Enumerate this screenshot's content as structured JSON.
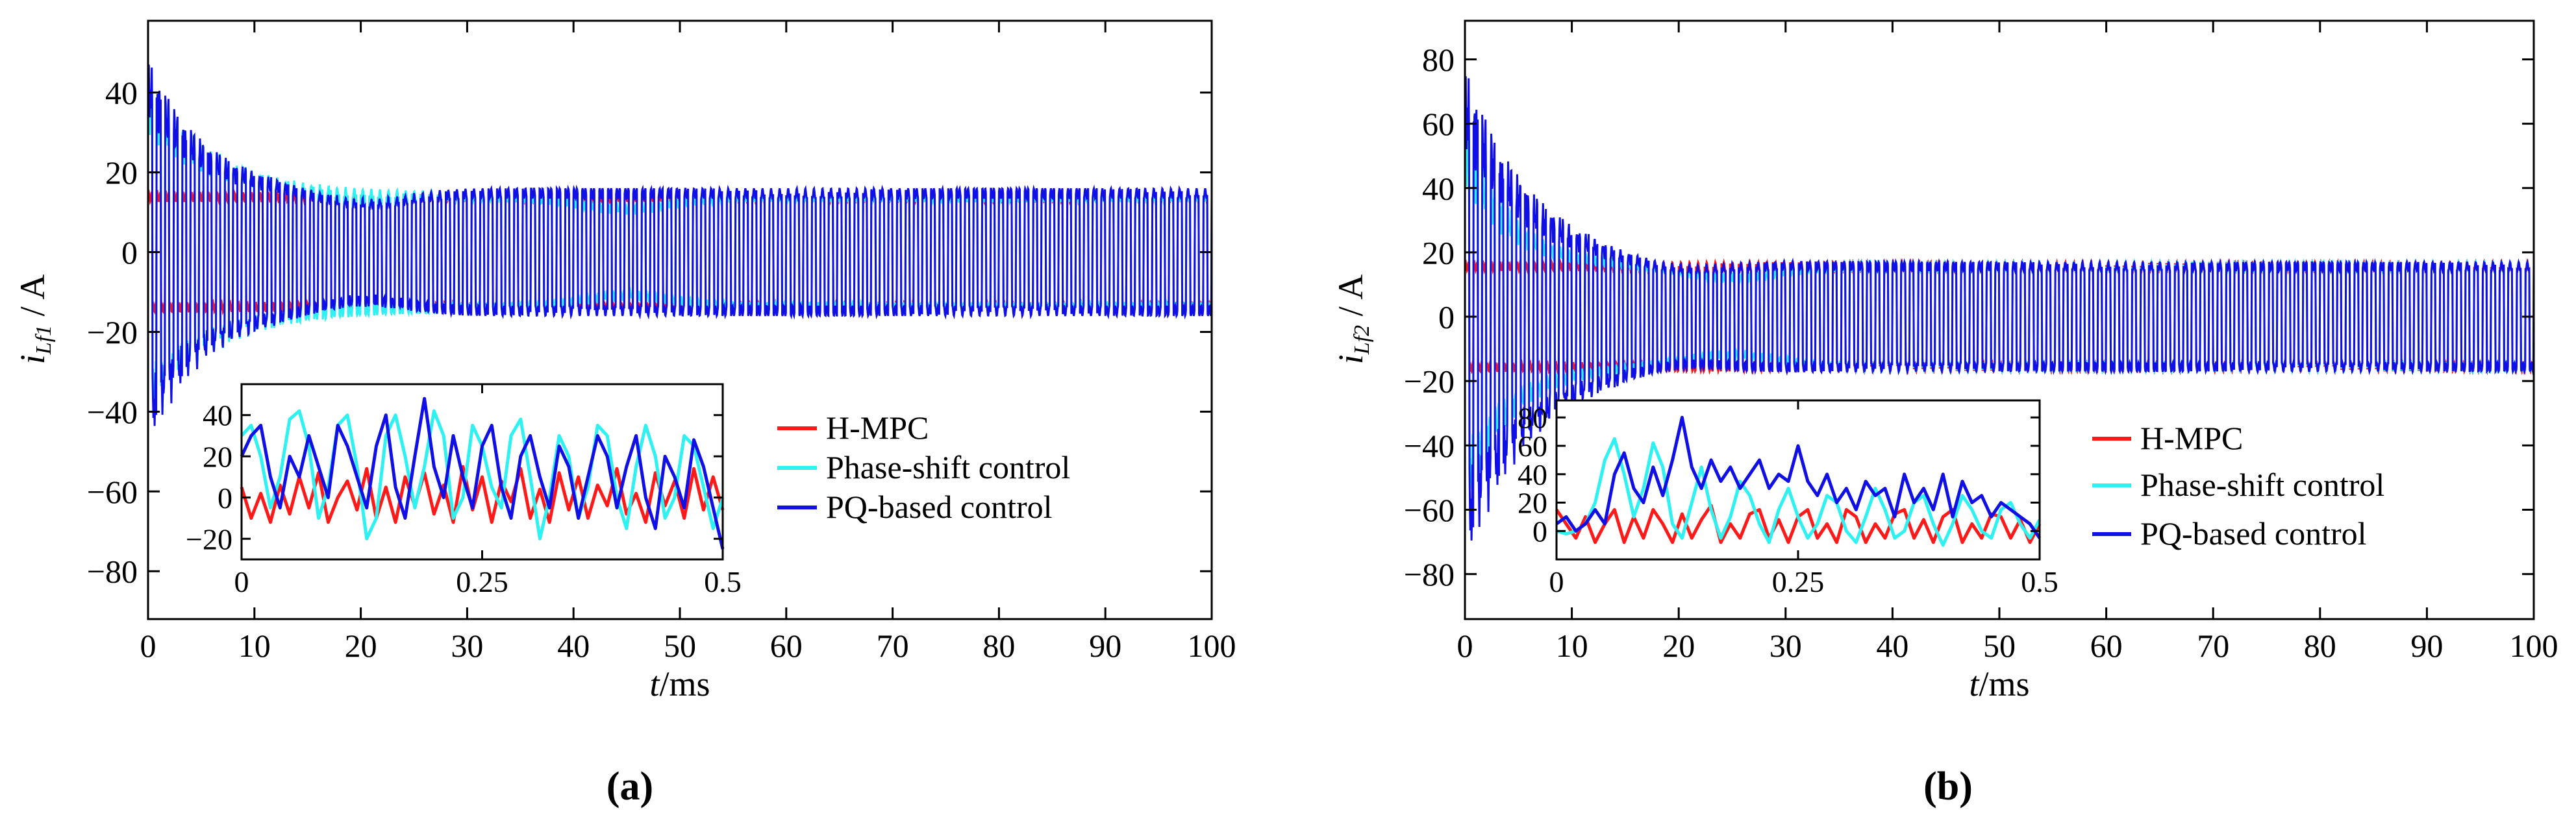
{
  "figure": {
    "panel_labels": [
      "(a)",
      "(b)"
    ]
  },
  "colors": {
    "hmpc": "#ff1a1a",
    "phase_shift": "#2ef2f2",
    "pq": "#1010e6",
    "axis": "#000000"
  },
  "chart_data": [
    {
      "type": "line",
      "panel": "a",
      "xlabel": "t/ms",
      "ylabel": "i_Lf1 / A",
      "ylabel_main": "i",
      "ylabel_sub": "Lf1",
      "ylabel_unit": " / A",
      "xlabel_var": "t",
      "xlabel_unit": "/ms",
      "xlim": [
        0,
        100
      ],
      "ylim": [
        -92,
        58
      ],
      "xticks": [
        0,
        10,
        20,
        30,
        40,
        50,
        60,
        70,
        80,
        90,
        100
      ],
      "yticks": [
        -80,
        -60,
        -40,
        -20,
        0,
        20,
        40
      ],
      "legend": [
        "H-MPC",
        "Phase-shift control",
        "PQ-based control"
      ],
      "legend_position": "center-right",
      "series": [
        {
          "name": "H-MPC",
          "color_key": "hmpc",
          "steady_amplitude": 15,
          "transient_peak": 15,
          "decay_ms": 0,
          "dip_center_ms": 0,
          "dip_depth": 0
        },
        {
          "name": "Phase-shift control",
          "color_key": "phase_shift",
          "steady_amplitude": 15,
          "transient_peak": 45,
          "decay_ms": 6,
          "dip_center_ms": 45,
          "dip_depth": 4
        },
        {
          "name": "PQ-based control",
          "color_key": "pq",
          "steady_amplitude": 16,
          "transient_peak": 50,
          "decay_ms": 5,
          "dip_center_ms": 20,
          "dip_depth": 4
        }
      ],
      "inset": {
        "xlim": [
          0,
          0.5
        ],
        "ylim": [
          -30,
          55
        ],
        "xticks": [
          0,
          0.25,
          0.5
        ],
        "yticks": [
          -20,
          0,
          20,
          40
        ],
        "series": [
          {
            "name": "H-MPC",
            "color_key": "hmpc",
            "x": [
              0,
              0.01,
              0.02,
              0.03,
              0.04,
              0.05,
              0.06,
              0.07,
              0.08,
              0.09,
              0.1,
              0.11,
              0.12,
              0.13,
              0.14,
              0.15,
              0.16,
              0.17,
              0.18,
              0.19,
              0.2,
              0.21,
              0.22,
              0.23,
              0.24,
              0.25,
              0.26,
              0.27,
              0.28,
              0.29,
              0.3,
              0.31,
              0.32,
              0.33,
              0.34,
              0.35,
              0.36,
              0.37,
              0.38,
              0.39,
              0.4,
              0.41,
              0.42,
              0.43,
              0.44,
              0.45,
              0.46,
              0.47,
              0.48,
              0.49,
              0.5
            ],
            "y": [
              5,
              -10,
              2,
              -12,
              6,
              -8,
              10,
              -5,
              12,
              -12,
              0,
              8,
              -6,
              14,
              -10,
              5,
              -12,
              10,
              -4,
              12,
              -8,
              6,
              -12,
              15,
              -6,
              10,
              -12,
              8,
              -2,
              14,
              -10,
              4,
              -12,
              12,
              -6,
              10,
              -10,
              6,
              -4,
              14,
              -8,
              2,
              -12,
              12,
              -4,
              8,
              -10,
              14,
              -6,
              10,
              -6
            ]
          },
          {
            "name": "Phase-shift control",
            "color_key": "phase_shift",
            "x": [
              0,
              0.01,
              0.02,
              0.03,
              0.04,
              0.05,
              0.06,
              0.07,
              0.08,
              0.09,
              0.1,
              0.11,
              0.12,
              0.13,
              0.14,
              0.15,
              0.16,
              0.17,
              0.18,
              0.19,
              0.2,
              0.21,
              0.22,
              0.23,
              0.24,
              0.25,
              0.26,
              0.27,
              0.28,
              0.29,
              0.3,
              0.31,
              0.32,
              0.33,
              0.34,
              0.35,
              0.36,
              0.37,
              0.38,
              0.39,
              0.4,
              0.41,
              0.42,
              0.43,
              0.44,
              0.45,
              0.46,
              0.47,
              0.48,
              0.49,
              0.5
            ],
            "y": [
              30,
              35,
              20,
              -5,
              10,
              38,
              42,
              25,
              -10,
              5,
              35,
              40,
              15,
              -20,
              -10,
              30,
              40,
              20,
              -5,
              15,
              42,
              30,
              -10,
              0,
              35,
              25,
              5,
              -5,
              30,
              38,
              10,
              -20,
              0,
              30,
              20,
              -10,
              5,
              35,
              30,
              0,
              -15,
              15,
              35,
              20,
              -10,
              0,
              30,
              25,
              5,
              -15,
              0
            ]
          },
          {
            "name": "PQ-based control",
            "color_key": "pq",
            "x": [
              0,
              0.01,
              0.02,
              0.03,
              0.04,
              0.05,
              0.06,
              0.07,
              0.08,
              0.09,
              0.1,
              0.11,
              0.12,
              0.13,
              0.14,
              0.15,
              0.16,
              0.17,
              0.18,
              0.19,
              0.2,
              0.21,
              0.22,
              0.23,
              0.24,
              0.25,
              0.26,
              0.27,
              0.28,
              0.29,
              0.3,
              0.31,
              0.32,
              0.33,
              0.34,
              0.35,
              0.36,
              0.37,
              0.38,
              0.39,
              0.4,
              0.41,
              0.42,
              0.43,
              0.44,
              0.45,
              0.46,
              0.47,
              0.48,
              0.49,
              0.5
            ],
            "y": [
              20,
              30,
              35,
              10,
              -5,
              20,
              10,
              30,
              15,
              0,
              35,
              25,
              10,
              -5,
              25,
              40,
              5,
              -10,
              20,
              48,
              15,
              0,
              30,
              10,
              -5,
              25,
              35,
              5,
              -10,
              20,
              30,
              10,
              -5,
              25,
              15,
              -10,
              10,
              30,
              20,
              -5,
              15,
              30,
              0,
              -15,
              20,
              10,
              -5,
              28,
              15,
              -5,
              -25
            ]
          }
        ]
      }
    },
    {
      "type": "line",
      "panel": "b",
      "xlabel": "t/ms",
      "ylabel": "i_Lf2 / A",
      "ylabel_main": "i",
      "ylabel_sub": "Lf2",
      "ylabel_unit": " / A",
      "xlabel_var": "t",
      "xlabel_unit": "/ms",
      "xlim": [
        0,
        100
      ],
      "ylim": [
        -94,
        92
      ],
      "xticks": [
        0,
        10,
        20,
        30,
        40,
        50,
        60,
        70,
        80,
        90,
        100
      ],
      "yticks": [
        -80,
        -60,
        -40,
        -20,
        0,
        20,
        40,
        60,
        80
      ],
      "legend": [
        "H-MPC",
        "Phase-shift control",
        "PQ-based control"
      ],
      "legend_position": "center-right",
      "series": [
        {
          "name": "H-MPC",
          "color_key": "hmpc",
          "steady_amplitude": 17,
          "transient_peak": 17,
          "decay_ms": 0,
          "dip_center_ms": 0,
          "dip_depth": 0
        },
        {
          "name": "Phase-shift control",
          "color_key": "phase_shift",
          "steady_amplitude": 17,
          "transient_peak": 65,
          "decay_ms": 4,
          "dip_center_ms": 25,
          "dip_depth": 5
        },
        {
          "name": "PQ-based control",
          "color_key": "pq",
          "steady_amplitude": 17,
          "transient_peak": 80,
          "decay_ms": 6,
          "dip_center_ms": 20,
          "dip_depth": 3
        }
      ],
      "inset": {
        "xlim": [
          0,
          0.5
        ],
        "ylim": [
          -20,
          92
        ],
        "xticks": [
          0,
          0.25,
          0.5
        ],
        "yticks": [
          0,
          20,
          40,
          60,
          80
        ],
        "series": [
          {
            "name": "H-MPC",
            "color_key": "hmpc",
            "x": [
              0,
              0.01,
              0.02,
              0.03,
              0.04,
              0.05,
              0.06,
              0.07,
              0.08,
              0.09,
              0.1,
              0.11,
              0.12,
              0.13,
              0.14,
              0.15,
              0.16,
              0.17,
              0.18,
              0.19,
              0.2,
              0.21,
              0.22,
              0.23,
              0.24,
              0.25,
              0.26,
              0.27,
              0.28,
              0.29,
              0.3,
              0.31,
              0.32,
              0.33,
              0.34,
              0.35,
              0.36,
              0.37,
              0.38,
              0.39,
              0.4,
              0.41,
              0.42,
              0.43,
              0.44,
              0.45,
              0.46,
              0.47,
              0.48,
              0.49,
              0.5
            ],
            "y": [
              15,
              5,
              -5,
              10,
              -8,
              5,
              15,
              -8,
              10,
              -5,
              15,
              5,
              -8,
              12,
              -5,
              8,
              18,
              -8,
              5,
              -5,
              12,
              15,
              -5,
              8,
              -8,
              10,
              15,
              -5,
              5,
              -8,
              15,
              10,
              -8,
              5,
              -5,
              12,
              15,
              -5,
              8,
              -8,
              10,
              15,
              -8,
              5,
              -5,
              12,
              10,
              -5,
              8,
              -8,
              5
            ]
          },
          {
            "name": "Phase-shift control",
            "color_key": "phase_shift",
            "x": [
              0,
              0.01,
              0.02,
              0.03,
              0.04,
              0.05,
              0.06,
              0.07,
              0.08,
              0.09,
              0.1,
              0.11,
              0.12,
              0.13,
              0.14,
              0.15,
              0.16,
              0.17,
              0.18,
              0.19,
              0.2,
              0.21,
              0.22,
              0.23,
              0.24,
              0.25,
              0.26,
              0.27,
              0.28,
              0.29,
              0.3,
              0.31,
              0.32,
              0.33,
              0.34,
              0.35,
              0.36,
              0.37,
              0.38,
              0.39,
              0.4,
              0.41,
              0.42,
              0.43,
              0.44,
              0.45,
              0.46,
              0.47,
              0.48,
              0.49,
              0.5
            ],
            "y": [
              0,
              -2,
              0,
              5,
              20,
              50,
              65,
              40,
              10,
              30,
              62,
              45,
              5,
              -5,
              20,
              45,
              15,
              -5,
              10,
              35,
              25,
              5,
              -8,
              15,
              30,
              10,
              -5,
              5,
              25,
              20,
              0,
              -8,
              10,
              30,
              15,
              -5,
              0,
              20,
              25,
              5,
              -10,
              5,
              25,
              15,
              0,
              -5,
              15,
              20,
              5,
              -5,
              8
            ]
          },
          {
            "name": "PQ-based control",
            "color_key": "pq",
            "x": [
              0,
              0.01,
              0.02,
              0.03,
              0.04,
              0.05,
              0.06,
              0.07,
              0.08,
              0.09,
              0.1,
              0.11,
              0.12,
              0.13,
              0.14,
              0.15,
              0.16,
              0.17,
              0.18,
              0.19,
              0.2,
              0.21,
              0.22,
              0.23,
              0.24,
              0.25,
              0.26,
              0.27,
              0.28,
              0.29,
              0.3,
              0.31,
              0.32,
              0.33,
              0.34,
              0.35,
              0.36,
              0.37,
              0.38,
              0.39,
              0.4,
              0.41,
              0.42,
              0.43,
              0.44,
              0.45,
              0.46,
              0.47,
              0.48,
              0.49,
              0.5
            ],
            "y": [
              5,
              10,
              0,
              5,
              15,
              5,
              40,
              55,
              30,
              20,
              45,
              25,
              50,
              80,
              45,
              30,
              50,
              35,
              45,
              30,
              40,
              50,
              30,
              40,
              35,
              60,
              35,
              25,
              40,
              20,
              30,
              15,
              35,
              25,
              30,
              10,
              40,
              20,
              30,
              15,
              40,
              10,
              35,
              20,
              25,
              10,
              20,
              15,
              10,
              5,
              -5
            ]
          }
        ]
      }
    }
  ]
}
